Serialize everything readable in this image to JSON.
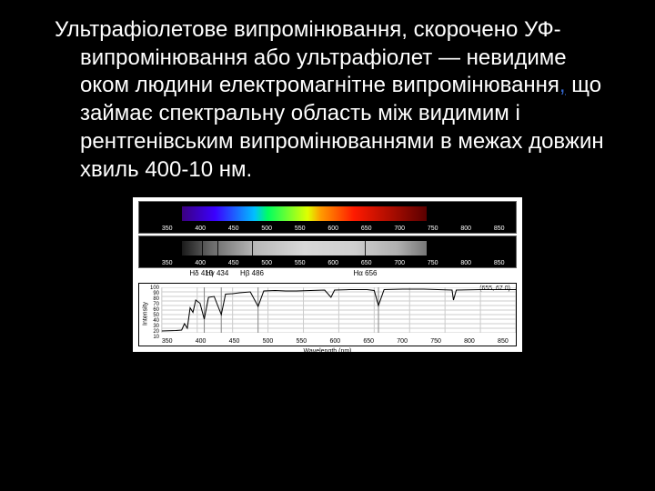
{
  "paragraph": "Ультрафіолетове випромінювання, скорочено УФ-випромінювання або ультрафіолет — невидиме оком людини електромагнітне випромінювання",
  "link_text": ",",
  "paragraph_tail": " що займає спектральну область між видимим і рентгенівським випромінюваннями в межах довжин хвиль 400-10 нм.",
  "spectrum": {
    "xticks": [
      "350",
      "400",
      "450",
      "500",
      "550",
      "600",
      "650",
      "700",
      "750",
      "800",
      "850"
    ],
    "visible_start_nm": 380,
    "visible_end_nm": 750,
    "axis_min": 350,
    "axis_max": 850,
    "color_segments": [
      {
        "nm_from": 380,
        "nm_to": 430,
        "from": "#3b007f",
        "to": "#3b00ff"
      },
      {
        "nm_from": 430,
        "nm_to": 490,
        "from": "#3b00ff",
        "to": "#00c0ff"
      },
      {
        "nm_from": 490,
        "nm_to": 510,
        "from": "#00c0ff",
        "to": "#00ff60"
      },
      {
        "nm_from": 510,
        "nm_to": 570,
        "from": "#00ff60",
        "to": "#e0ff00"
      },
      {
        "nm_from": 570,
        "nm_to": 590,
        "from": "#e0ff00",
        "to": "#ff9a00"
      },
      {
        "nm_from": 590,
        "nm_to": 640,
        "from": "#ff9a00",
        "to": "#ff1a00"
      },
      {
        "nm_from": 640,
        "nm_to": 750,
        "from": "#ff1a00",
        "to": "#5a0000"
      }
    ]
  },
  "hydrogen_lines": [
    {
      "label": "Hδ 410",
      "nm": 410
    },
    {
      "label": "Hγ 434",
      "nm": 434
    },
    {
      "label": "Hβ 486",
      "nm": 486
    },
    {
      "label": "Hα 656",
      "nm": 656
    }
  ],
  "chart": {
    "ylabel": "Intensity",
    "xlabel": "Wavelength (nm)",
    "cursor": "(655, 67.0)",
    "yticks": [
      "100",
      "90",
      "80",
      "70",
      "60",
      "50",
      "40",
      "30",
      "20",
      "10"
    ],
    "x_min": 350,
    "x_max": 850,
    "y_min": 0,
    "y_max": 100,
    "trace": [
      [
        350,
        4
      ],
      [
        370,
        5
      ],
      [
        378,
        6
      ],
      [
        382,
        20
      ],
      [
        386,
        10
      ],
      [
        390,
        55
      ],
      [
        394,
        45
      ],
      [
        398,
        72
      ],
      [
        404,
        65
      ],
      [
        410,
        30
      ],
      [
        416,
        78
      ],
      [
        424,
        80
      ],
      [
        434,
        40
      ],
      [
        440,
        85
      ],
      [
        450,
        86
      ],
      [
        460,
        88
      ],
      [
        475,
        90
      ],
      [
        486,
        58
      ],
      [
        494,
        92
      ],
      [
        510,
        93
      ],
      [
        525,
        92
      ],
      [
        540,
        92
      ],
      [
        560,
        93
      ],
      [
        580,
        94
      ],
      [
        589,
        78
      ],
      [
        594,
        94
      ],
      [
        615,
        95
      ],
      [
        640,
        95
      ],
      [
        650,
        93
      ],
      [
        656,
        60
      ],
      [
        664,
        95
      ],
      [
        690,
        96
      ],
      [
        720,
        96
      ],
      [
        760,
        94
      ],
      [
        762,
        72
      ],
      [
        766,
        94
      ],
      [
        800,
        95
      ],
      [
        830,
        95
      ],
      [
        850,
        95
      ]
    ],
    "grid_color": "#cccccc",
    "trace_color": "#000000",
    "bg": "#ffffff"
  }
}
